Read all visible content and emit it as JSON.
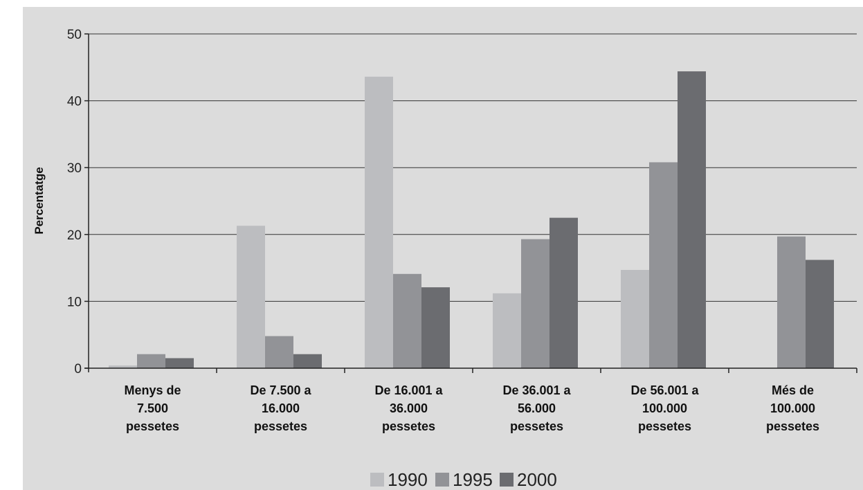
{
  "chart_data": {
    "type": "bar",
    "title": "",
    "xlabel": "",
    "ylabel": "Percentatge",
    "ylim": [
      0,
      50
    ],
    "yticks": [
      0,
      10,
      20,
      30,
      40,
      50
    ],
    "grid": true,
    "legend_position": "bottom",
    "categories": [
      [
        "Menys de",
        "7.500",
        "pessetes"
      ],
      [
        "De 7.500 a",
        "16.000",
        "pessetes"
      ],
      [
        "De 16.001 a",
        "36.000",
        "pessetes"
      ],
      [
        "De 36.001 a",
        "56.000",
        "pessetes"
      ],
      [
        "De 56.001 a",
        "100.000",
        "pessetes"
      ],
      [
        "Més de",
        "100.000",
        "pessetes"
      ]
    ],
    "series": [
      {
        "name": "1990",
        "color": "#bcbdc0",
        "values": [
          0.4,
          21.3,
          43.6,
          11.2,
          14.7,
          0
        ]
      },
      {
        "name": "1995",
        "color": "#929397",
        "values": [
          2.1,
          4.8,
          14.1,
          19.3,
          30.8,
          19.7
        ]
      },
      {
        "name": "2000",
        "color": "#6b6c70",
        "values": [
          1.5,
          2.1,
          12.1,
          22.5,
          44.4,
          16.2
        ]
      }
    ]
  }
}
